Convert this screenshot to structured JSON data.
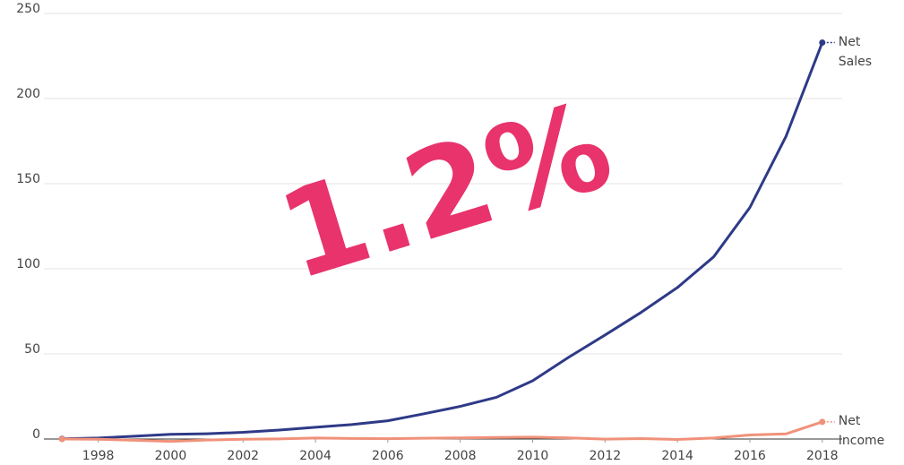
{
  "chart_data": {
    "type": "line",
    "x": [
      1997,
      1998,
      1999,
      2000,
      2001,
      2002,
      2003,
      2004,
      2005,
      2006,
      2007,
      2008,
      2009,
      2010,
      2011,
      2012,
      2013,
      2014,
      2015,
      2016,
      2017,
      2018
    ],
    "series": [
      {
        "name": "Net Sales",
        "color": "#2e3a87",
        "values": [
          0.15,
          0.61,
          1.64,
          2.76,
          3.12,
          3.93,
          5.26,
          6.92,
          8.49,
          10.71,
          14.84,
          19.17,
          24.51,
          34.2,
          48.08,
          61.09,
          74.45,
          88.99,
          107.01,
          135.99,
          177.87,
          232.89
        ]
      },
      {
        "name": "Net Income",
        "color": "#f0917a",
        "values": [
          -0.03,
          -0.12,
          -0.72,
          -1.41,
          -0.57,
          -0.15,
          0.04,
          0.59,
          0.36,
          0.19,
          0.48,
          0.65,
          0.9,
          1.15,
          0.63,
          -0.04,
          0.27,
          -0.24,
          0.6,
          2.37,
          3.03,
          10.07
        ]
      }
    ],
    "xlim": [
      1996.5,
      2018.55
    ],
    "xticks": [
      1998,
      2000,
      2002,
      2004,
      2006,
      2008,
      2010,
      2012,
      2014,
      2016,
      2018
    ],
    "ylim": [
      0,
      250
    ],
    "yticks": [
      0,
      50,
      100,
      150,
      200,
      250
    ],
    "grid": true,
    "annotation": "1.2%",
    "annotation_color": "#e8336d"
  }
}
